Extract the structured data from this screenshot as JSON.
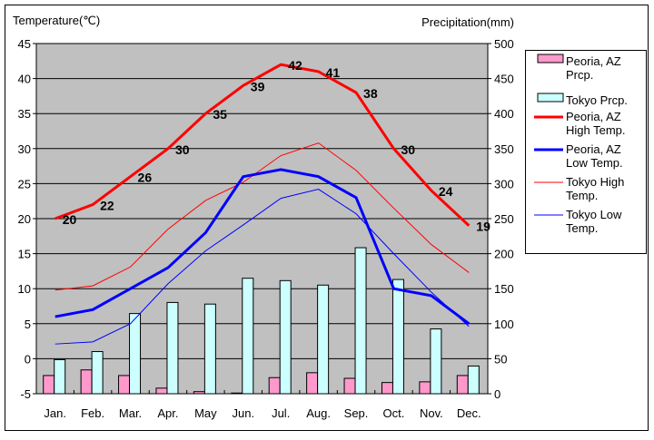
{
  "chart_data": {
    "type": "bar+line",
    "left_axis_label": "Temperature(℃)",
    "right_axis_label": "Precipitation(mm)",
    "left_ylim": [
      -5,
      45
    ],
    "left_ticks": [
      -5,
      0,
      5,
      10,
      15,
      20,
      25,
      30,
      35,
      40,
      45
    ],
    "right_ylim": [
      0,
      500
    ],
    "right_ticks": [
      0,
      50,
      100,
      150,
      200,
      250,
      300,
      350,
      400,
      450,
      500
    ],
    "categories": [
      "Jan.",
      "Feb.",
      "Mar.",
      "Apr.",
      "May",
      "Jun.",
      "Jul.",
      "Aug.",
      "Sep.",
      "Oct.",
      "Nov.",
      "Dec."
    ],
    "bars": [
      {
        "name": "Peoria, AZ Prcp.",
        "legend": [
          "Peoria, AZ",
          "Prcp."
        ],
        "color": "#ff99cc",
        "values": [
          26,
          34,
          26,
          8,
          3,
          1,
          23,
          30,
          22,
          16,
          17,
          26
        ]
      },
      {
        "name": "Tokyo Prcp.",
        "legend": [
          "Tokyo Prcp."
        ],
        "color": "#ccffff",
        "values": [
          48.6,
          60.2,
          114.5,
          130.3,
          128.0,
          164.9,
          161.5,
          155.1,
          208.5,
          163.1,
          92.5,
          39.6
        ]
      }
    ],
    "lines": [
      {
        "name": "Peoria, AZ High Temp.",
        "legend": [
          "Peoria, AZ",
          "High Temp."
        ],
        "color": "#ff0000",
        "width": 3,
        "labels": true,
        "values": [
          20,
          22,
          26,
          30,
          35,
          39,
          42,
          41,
          38,
          30,
          24,
          19
        ]
      },
      {
        "name": "Peoria, AZ Low Temp.",
        "legend": [
          "Peoria, AZ",
          "Low Temp."
        ],
        "color": "#0000ff",
        "width": 3,
        "labels": false,
        "values": [
          6,
          7,
          10,
          13,
          18,
          26,
          27,
          26,
          23,
          10,
          9,
          5
        ]
      },
      {
        "name": "Tokyo High Temp.",
        "legend": [
          "Tokyo High",
          "Temp."
        ],
        "color": "#ff0000",
        "width": 1,
        "labels": false,
        "values": [
          9.8,
          10.4,
          13.1,
          18.5,
          22.6,
          25.2,
          29.0,
          30.8,
          26.9,
          21.5,
          16.3,
          12.3
        ]
      },
      {
        "name": "Tokyo Low Temp.",
        "legend": [
          "Tokyo Low",
          "Temp."
        ],
        "color": "#0000ff",
        "width": 1,
        "labels": false,
        "values": [
          2.1,
          2.4,
          5.0,
          10.7,
          15.4,
          19.1,
          22.9,
          24.2,
          20.7,
          15.0,
          9.5,
          4.6
        ]
      }
    ],
    "grid": true,
    "legend_placement": "right"
  }
}
